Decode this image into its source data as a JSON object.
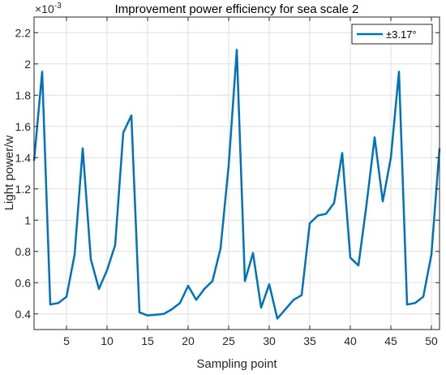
{
  "chart_data": {
    "type": "line",
    "title": "Improvement power efficiency for sea scale 2",
    "xlabel": "Sampling point",
    "ylabel": "Light power/w",
    "y_exponent_label": "×10",
    "y_exponent_power": "-3",
    "xlim": [
      1,
      51
    ],
    "ylim": [
      0.3,
      2.3
    ],
    "x_ticks": [
      5,
      10,
      15,
      20,
      25,
      30,
      35,
      40,
      45,
      50
    ],
    "y_ticks": [
      0.4,
      0.6,
      0.8,
      1,
      1.2,
      1.4,
      1.6,
      1.8,
      2,
      2.2
    ],
    "y_tick_labels": [
      "0.4",
      "0.6",
      "0.8",
      "1",
      "1.2",
      "1.4",
      "1.6",
      "1.8",
      "2",
      "2.2"
    ],
    "grid": true,
    "legend_position": "top-right",
    "series": [
      {
        "name": "±3.17°",
        "color": "#0072BD",
        "x": [
          1,
          2,
          3,
          4,
          5,
          6,
          7,
          8,
          9,
          10,
          11,
          12,
          13,
          14,
          15,
          16,
          17,
          18,
          19,
          20,
          21,
          22,
          23,
          24,
          25,
          26,
          27,
          28,
          29,
          30,
          31,
          32,
          33,
          34,
          35,
          36,
          37,
          38,
          39,
          40,
          41,
          42,
          43,
          44,
          45,
          46,
          47,
          48,
          49,
          50,
          51
        ],
        "values": [
          1.38,
          1.95,
          0.46,
          0.47,
          0.51,
          0.78,
          1.46,
          0.75,
          0.56,
          0.68,
          0.84,
          1.56,
          1.67,
          0.41,
          0.39,
          0.395,
          0.4,
          0.43,
          0.47,
          0.58,
          0.49,
          0.56,
          0.61,
          0.82,
          1.35,
          2.09,
          0.61,
          0.79,
          0.44,
          0.59,
          0.37,
          0.43,
          0.49,
          0.52,
          0.98,
          1.03,
          1.04,
          1.11,
          1.43,
          0.76,
          0.71,
          1.1,
          1.53,
          1.12,
          1.4,
          1.95,
          0.46,
          0.47,
          0.51,
          0.78,
          1.46
        ]
      }
    ]
  }
}
